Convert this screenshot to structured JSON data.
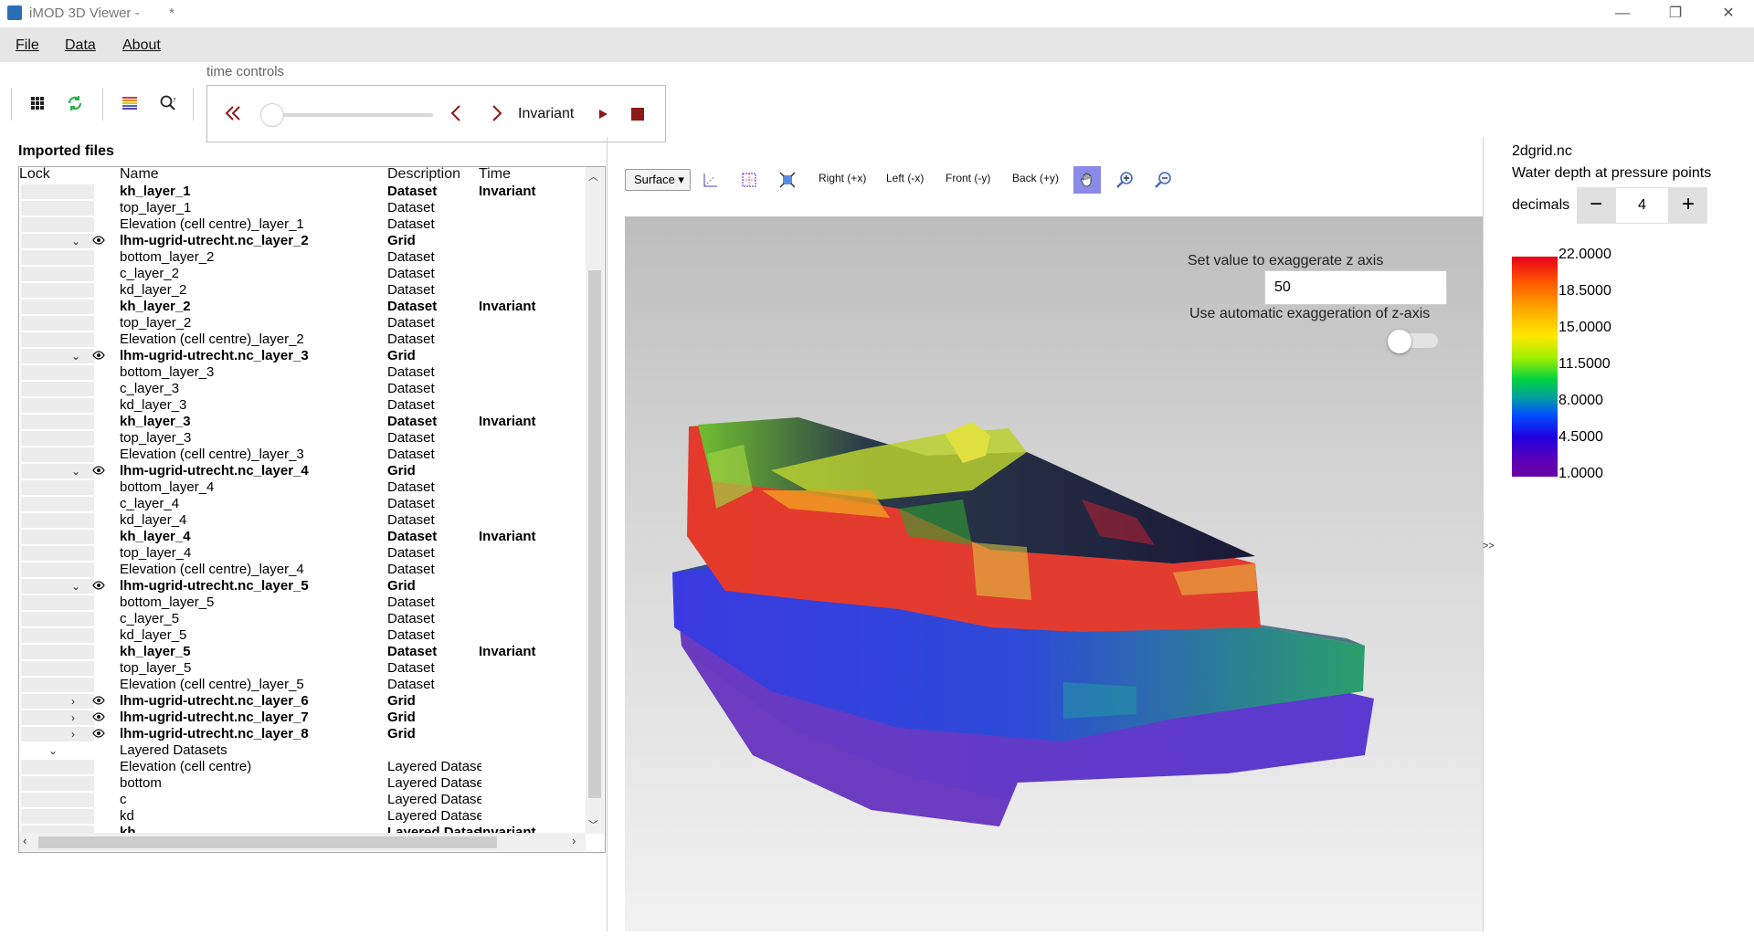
{
  "window": {
    "title": "iMOD 3D Viewer -",
    "modified_mark": "*",
    "controls": [
      "—",
      "❐",
      "✕"
    ]
  },
  "menu": [
    {
      "label": "File"
    },
    {
      "label": "Data"
    },
    {
      "label": "About"
    }
  ],
  "toolbar": {
    "time_controls_label": "time controls",
    "time_value": "Invariant"
  },
  "imported_files": {
    "title": "Imported files",
    "columns": [
      "Lock",
      "Name",
      "Description",
      "Time"
    ],
    "rows": [
      {
        "name": "kh_layer_1",
        "desc": "Dataset",
        "time": "Invariant",
        "bold": true,
        "lock": true
      },
      {
        "name": "top_layer_1",
        "desc": "Dataset",
        "time": "",
        "bold": false,
        "lock": true
      },
      {
        "name": "Elevation (cell centre)_layer_1",
        "desc": "Dataset",
        "time": "",
        "bold": false,
        "lock": true
      },
      {
        "name": "lhm-ugrid-utrecht.nc_layer_2",
        "desc": "Grid",
        "time": "",
        "bold": true,
        "lock": true,
        "chev": "⌄",
        "eye": true
      },
      {
        "name": "bottom_layer_2",
        "desc": "Dataset",
        "time": "",
        "bold": false,
        "lock": true
      },
      {
        "name": "c_layer_2",
        "desc": "Dataset",
        "time": "",
        "bold": false,
        "lock": true
      },
      {
        "name": "kd_layer_2",
        "desc": "Dataset",
        "time": "",
        "bold": false,
        "lock": true
      },
      {
        "name": "kh_layer_2",
        "desc": "Dataset",
        "time": "Invariant",
        "bold": true,
        "lock": true
      },
      {
        "name": "top_layer_2",
        "desc": "Dataset",
        "time": "",
        "bold": false,
        "lock": true
      },
      {
        "name": "Elevation (cell centre)_layer_2",
        "desc": "Dataset",
        "time": "",
        "bold": false,
        "lock": true
      },
      {
        "name": "lhm-ugrid-utrecht.nc_layer_3",
        "desc": "Grid",
        "time": "",
        "bold": true,
        "lock": true,
        "chev": "⌄",
        "eye": true
      },
      {
        "name": "bottom_layer_3",
        "desc": "Dataset",
        "time": "",
        "bold": false,
        "lock": true
      },
      {
        "name": "c_layer_3",
        "desc": "Dataset",
        "time": "",
        "bold": false,
        "lock": true
      },
      {
        "name": "kd_layer_3",
        "desc": "Dataset",
        "time": "",
        "bold": false,
        "lock": true
      },
      {
        "name": "kh_layer_3",
        "desc": "Dataset",
        "time": "Invariant",
        "bold": true,
        "lock": true
      },
      {
        "name": "top_layer_3",
        "desc": "Dataset",
        "time": "",
        "bold": false,
        "lock": true
      },
      {
        "name": "Elevation (cell centre)_layer_3",
        "desc": "Dataset",
        "time": "",
        "bold": false,
        "lock": true
      },
      {
        "name": "lhm-ugrid-utrecht.nc_layer_4",
        "desc": "Grid",
        "time": "",
        "bold": true,
        "lock": true,
        "chev": "⌄",
        "eye": true
      },
      {
        "name": "bottom_layer_4",
        "desc": "Dataset",
        "time": "",
        "bold": false,
        "lock": true
      },
      {
        "name": "c_layer_4",
        "desc": "Dataset",
        "time": "",
        "bold": false,
        "lock": true
      },
      {
        "name": "kd_layer_4",
        "desc": "Dataset",
        "time": "",
        "bold": false,
        "lock": true
      },
      {
        "name": "kh_layer_4",
        "desc": "Dataset",
        "time": "Invariant",
        "bold": true,
        "lock": true
      },
      {
        "name": "top_layer_4",
        "desc": "Dataset",
        "time": "",
        "bold": false,
        "lock": true
      },
      {
        "name": "Elevation (cell centre)_layer_4",
        "desc": "Dataset",
        "time": "",
        "bold": false,
        "lock": true
      },
      {
        "name": "lhm-ugrid-utrecht.nc_layer_5",
        "desc": "Grid",
        "time": "",
        "bold": true,
        "lock": true,
        "chev": "⌄",
        "eye": true
      },
      {
        "name": "bottom_layer_5",
        "desc": "Dataset",
        "time": "",
        "bold": false,
        "lock": true
      },
      {
        "name": "c_layer_5",
        "desc": "Dataset",
        "time": "",
        "bold": false,
        "lock": true
      },
      {
        "name": "kd_layer_5",
        "desc": "Dataset",
        "time": "",
        "bold": false,
        "lock": true
      },
      {
        "name": "kh_layer_5",
        "desc": "Dataset",
        "time": "Invariant",
        "bold": true,
        "lock": true
      },
      {
        "name": "top_layer_5",
        "desc": "Dataset",
        "time": "",
        "bold": false,
        "lock": true
      },
      {
        "name": "Elevation (cell centre)_layer_5",
        "desc": "Dataset",
        "time": "",
        "bold": false,
        "lock": true
      },
      {
        "name": "lhm-ugrid-utrecht.nc_layer_6",
        "desc": "Grid",
        "time": "",
        "bold": true,
        "lock": true,
        "chev": "›",
        "eye": true
      },
      {
        "name": "lhm-ugrid-utrecht.nc_layer_7",
        "desc": "Grid",
        "time": "",
        "bold": true,
        "lock": true,
        "chev": "›",
        "eye": true
      },
      {
        "name": "lhm-ugrid-utrecht.nc_layer_8",
        "desc": "Grid",
        "time": "",
        "bold": true,
        "lock": true,
        "chev": "›",
        "eye": true
      },
      {
        "name": "Layered Datasets",
        "desc": "",
        "time": "",
        "bold": false,
        "lock": false,
        "chevroot": "⌄"
      },
      {
        "name": "Elevation (cell centre)",
        "desc": "Layered Dataset",
        "time": "",
        "bold": false,
        "lock": true
      },
      {
        "name": "bottom",
        "desc": "Layered Dataset",
        "time": "",
        "bold": false,
        "lock": true
      },
      {
        "name": "c",
        "desc": "Layered Dataset",
        "time": "",
        "bold": false,
        "lock": true
      },
      {
        "name": "kd",
        "desc": "Layered Dataset",
        "time": "",
        "bold": false,
        "lock": true
      },
      {
        "name": "kh",
        "desc": "Layered Dataset",
        "time": "Invariant",
        "bold": true,
        "lock": true
      }
    ]
  },
  "viewer": {
    "surface_label": "Surface",
    "view_buttons": [
      "Right (+x)",
      "Left (-x)",
      "Front (-y)",
      "Back (+y)"
    ],
    "exaggerate_label": "Set value to exaggerate z axis",
    "exaggerate_value": "50",
    "auto_exaggerate_label": "Use automatic exaggeration of z-axis",
    "auto_exaggerate_on": false,
    "collapse_label": ">>"
  },
  "legend": {
    "file": "2dgrid.nc",
    "variable": "Water depth at pressure points",
    "decimals_label": "decimals",
    "decimals_value": "4",
    "minus": "−",
    "plus": "+",
    "ticks": [
      "22.0000",
      "18.5000",
      "15.0000",
      "11.5000",
      "8.0000",
      "4.5000",
      "1.0000"
    ]
  },
  "colors": {
    "accent_dark_red": "#8b1a1a",
    "pan_active": "#8a8ae8"
  }
}
